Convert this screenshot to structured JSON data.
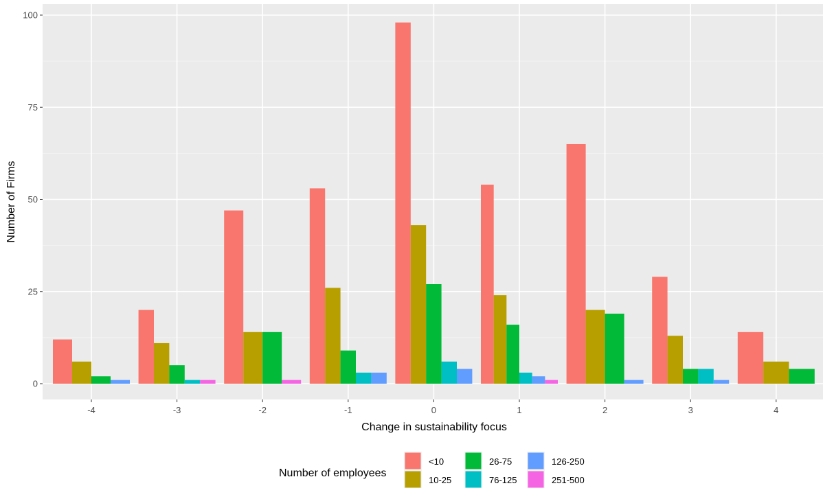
{
  "chart_data": {
    "type": "bar",
    "xlabel": "Change in sustainability focus",
    "ylabel": "Number of Firms",
    "categories": [
      "-4",
      "-3",
      "-2",
      "-1",
      "0",
      "1",
      "2",
      "3",
      "4"
    ],
    "ylim": [
      0,
      100
    ],
    "yticks": [
      0,
      25,
      50,
      75,
      100
    ],
    "grid": true,
    "legend": {
      "title": "Number of employees",
      "position": "bottom"
    },
    "series": [
      {
        "name": "<10",
        "color": "#F8766D",
        "values": [
          12,
          20,
          47,
          53,
          98,
          54,
          65,
          29,
          14
        ]
      },
      {
        "name": "10-25",
        "color": "#B79F00",
        "values": [
          6,
          11,
          14,
          26,
          43,
          24,
          20,
          13,
          6
        ]
      },
      {
        "name": "26-75",
        "color": "#00BA38",
        "values": [
          2,
          5,
          14,
          9,
          27,
          16,
          19,
          4,
          4
        ]
      },
      {
        "name": "76-125",
        "color": "#00BFC4",
        "values": [
          null,
          1,
          null,
          3,
          6,
          3,
          null,
          4,
          null
        ]
      },
      {
        "name": "126-250",
        "color": "#619CFF",
        "values": [
          1,
          null,
          null,
          3,
          4,
          2,
          1,
          1,
          null
        ]
      },
      {
        "name": "251-500",
        "color": "#F564E3",
        "values": [
          null,
          1,
          1,
          null,
          null,
          1,
          null,
          null,
          null
        ]
      }
    ]
  }
}
